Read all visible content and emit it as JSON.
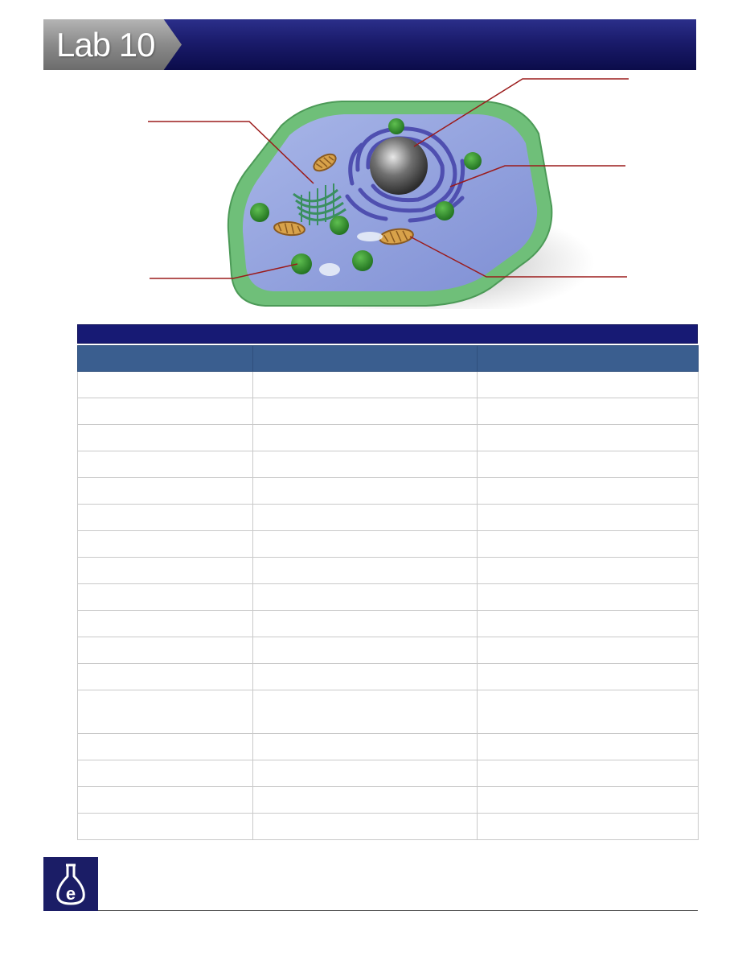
{
  "header": {
    "lab_label": "Lab 10",
    "bar_color": "#1a1b6b",
    "tab_color": "#8a8a8a"
  },
  "figure": {
    "icon": "animal-cell-diagram-icon",
    "leader_line_color": "#9b1b1b",
    "label_lines": [
      "golgi-apparatus",
      "nucleus",
      "endoplasmic-reticulum",
      "lysosome",
      "mitochondrion"
    ]
  },
  "table": {
    "title": "",
    "header_color": "#3a5e8f",
    "title_bar_color": "#171a74",
    "columns": [
      "",
      "",
      ""
    ],
    "row_count": 17
  },
  "footer": {
    "logo_icon": "flask-e-logo-icon",
    "logo_color": "#1b1d66"
  }
}
